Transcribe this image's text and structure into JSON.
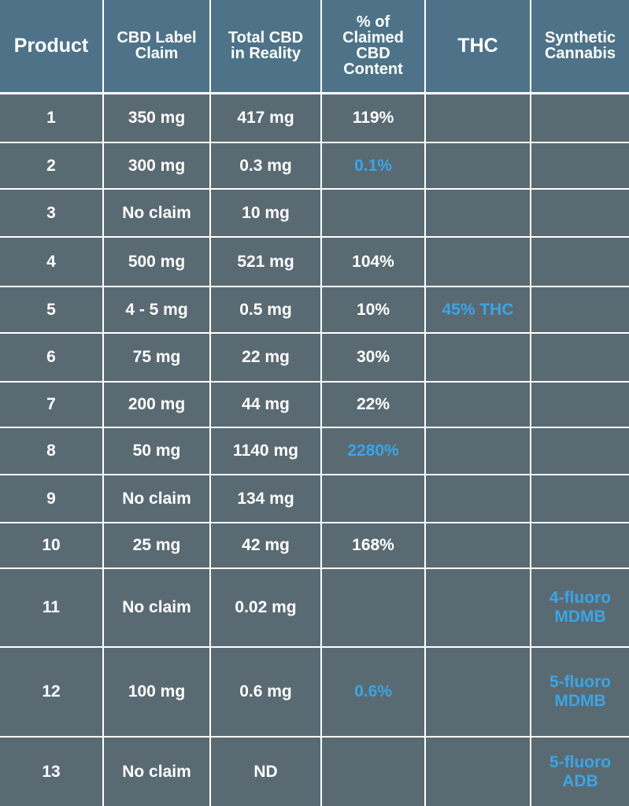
{
  "chart_data": {
    "type": "table",
    "columns": [
      "Product",
      "CBD Label Claim",
      "Total CBD in Reality",
      "% of Claimed CBD Content",
      "THC",
      "Synthetic Cannabis"
    ],
    "rows": [
      [
        "1",
        "350 mg",
        "417 mg",
        "119%",
        "",
        ""
      ],
      [
        "2",
        "300 mg",
        "0.3 mg",
        "0.1%",
        "",
        ""
      ],
      [
        "3",
        "No claim",
        "10 mg",
        "",
        "",
        ""
      ],
      [
        "4",
        "500 mg",
        "521 mg",
        "104%",
        "",
        ""
      ],
      [
        "5",
        "4 - 5 mg",
        "0.5 mg",
        "10%",
        "45% THC",
        ""
      ],
      [
        "6",
        "75 mg",
        "22 mg",
        "30%",
        "",
        ""
      ],
      [
        "7",
        "200 mg",
        "44 mg",
        "22%",
        "",
        ""
      ],
      [
        "8",
        "50 mg",
        "1140 mg",
        "2280%",
        "",
        ""
      ],
      [
        "9",
        "No claim",
        "134 mg",
        "",
        "",
        ""
      ],
      [
        "10",
        "25 mg",
        "42 mg",
        "168%",
        "",
        ""
      ],
      [
        "11",
        "No claim",
        "0.02 mg",
        "",
        "",
        "4-fluoro MDMB"
      ],
      [
        "12",
        "100 mg",
        "0.6 mg",
        "0.6%",
        "",
        "5-fluoro MDMB"
      ],
      [
        "13",
        "No claim",
        "ND",
        "",
        "",
        "5-fluoro ADB"
      ]
    ],
    "highlighted_cells": [
      {
        "row": 1,
        "col": 3
      },
      {
        "row": 4,
        "col": 4
      },
      {
        "row": 7,
        "col": 3
      },
      {
        "row": 10,
        "col": 5
      },
      {
        "row": 11,
        "col": 3
      },
      {
        "row": 11,
        "col": 5
      },
      {
        "row": 12,
        "col": 5
      }
    ]
  },
  "colors": {
    "header_bg": "#4e7389",
    "body_bg": "#5a6a73",
    "text": "#ffffff",
    "highlight": "#3aa5e6",
    "grid": "#ffffff"
  }
}
